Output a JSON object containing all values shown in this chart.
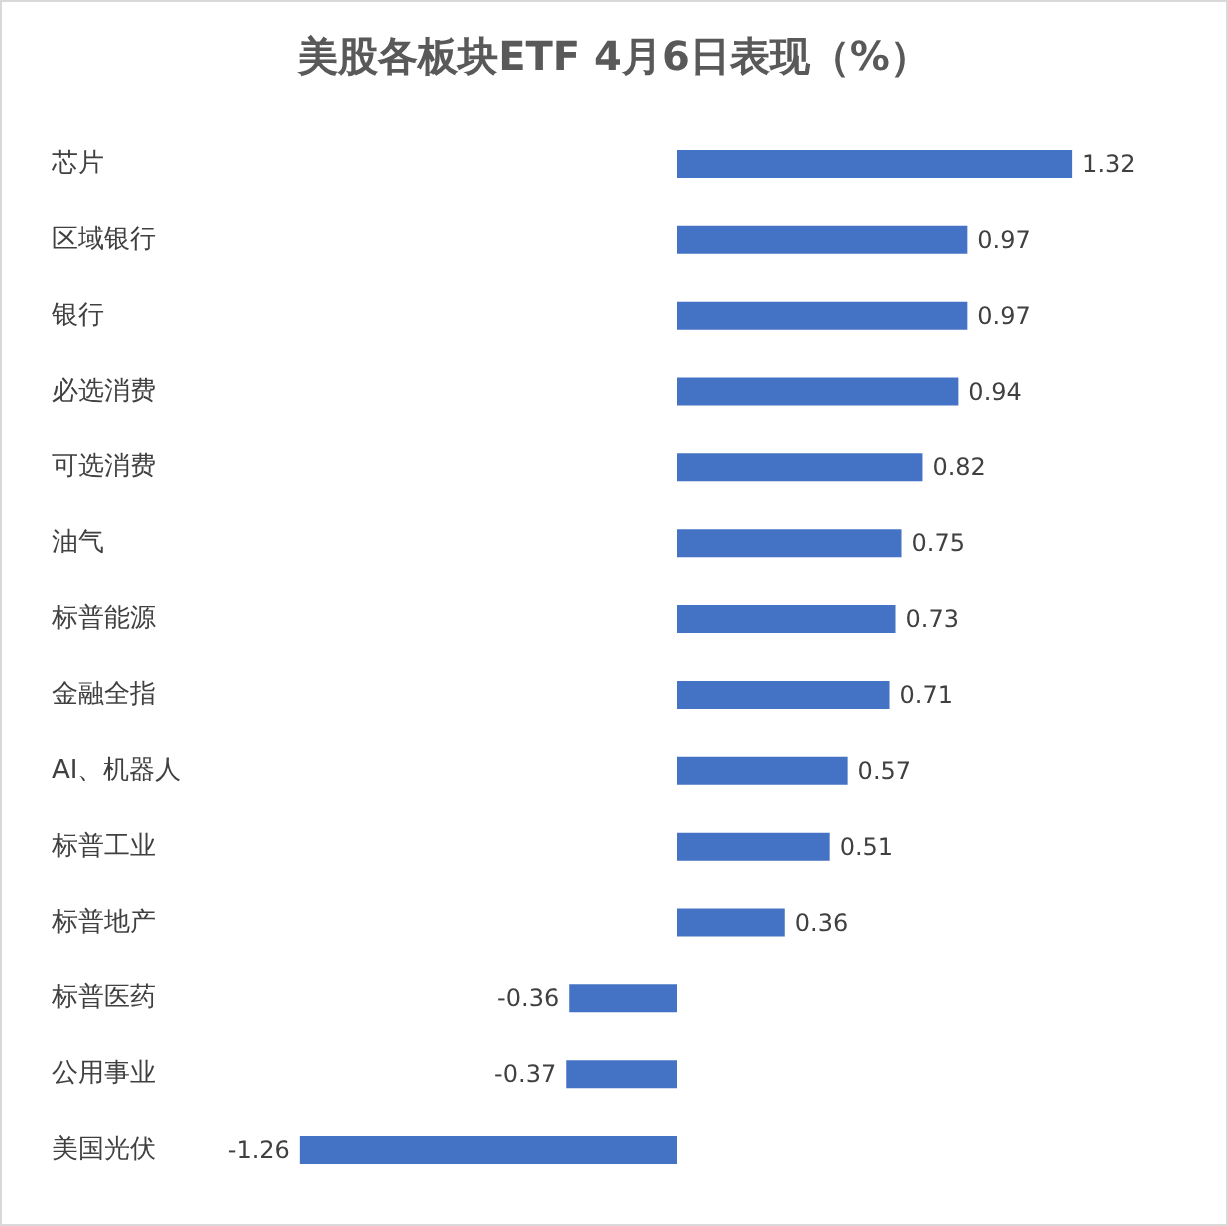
{
  "chart_data": {
    "type": "bar",
    "orientation": "horizontal",
    "title": "美股各板块ETF 4月6日表现（%）",
    "categories": [
      "芯片",
      "区域银行",
      "银行",
      "必选消费",
      "可选消费",
      "油气",
      "标普能源",
      "金融全指",
      "AI、机器人",
      "标普工业",
      "标普地产",
      "标普医药",
      "公用事业",
      "美国光伏"
    ],
    "values": [
      1.32,
      0.97,
      0.97,
      0.94,
      0.82,
      0.75,
      0.73,
      0.71,
      0.57,
      0.51,
      0.36,
      -0.36,
      -0.37,
      -1.26
    ],
    "color": "#4472c4",
    "data_labels": true
  }
}
